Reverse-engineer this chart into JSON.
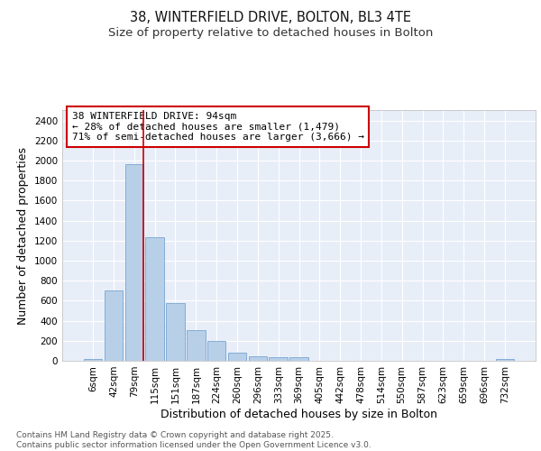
{
  "title_line1": "38, WINTERFIELD DRIVE, BOLTON, BL3 4TE",
  "title_line2": "Size of property relative to detached houses in Bolton",
  "xlabel": "Distribution of detached houses by size in Bolton",
  "ylabel": "Number of detached properties",
  "categories": [
    "6sqm",
    "42sqm",
    "79sqm",
    "115sqm",
    "151sqm",
    "187sqm",
    "224sqm",
    "260sqm",
    "296sqm",
    "333sqm",
    "369sqm",
    "405sqm",
    "442sqm",
    "478sqm",
    "514sqm",
    "550sqm",
    "587sqm",
    "623sqm",
    "659sqm",
    "696sqm",
    "732sqm"
  ],
  "values": [
    15,
    700,
    1960,
    1230,
    575,
    305,
    200,
    85,
    48,
    38,
    35,
    0,
    0,
    0,
    0,
    0,
    0,
    0,
    0,
    0,
    15
  ],
  "bar_color": "#b8cfe8",
  "bar_edge_color": "#6699cc",
  "vline_color": "#cc0000",
  "annotation_text": "38 WINTERFIELD DRIVE: 94sqm\n← 28% of detached houses are smaller (1,479)\n71% of semi-detached houses are larger (3,666) →",
  "annotation_box_facecolor": "#ffffff",
  "annotation_box_edgecolor": "#cc0000",
  "ylim": [
    0,
    2500
  ],
  "yticks": [
    0,
    200,
    400,
    600,
    800,
    1000,
    1200,
    1400,
    1600,
    1800,
    2000,
    2200,
    2400
  ],
  "bg_color": "#ffffff",
  "plot_bg_color": "#e8eef8",
  "grid_color": "#ffffff",
  "footer": "Contains HM Land Registry data © Crown copyright and database right 2025.\nContains public sector information licensed under the Open Government Licence v3.0.",
  "title_fontsize": 10.5,
  "subtitle_fontsize": 9.5,
  "axis_label_fontsize": 9,
  "tick_fontsize": 7.5,
  "annotation_fontsize": 8,
  "footer_fontsize": 6.5
}
